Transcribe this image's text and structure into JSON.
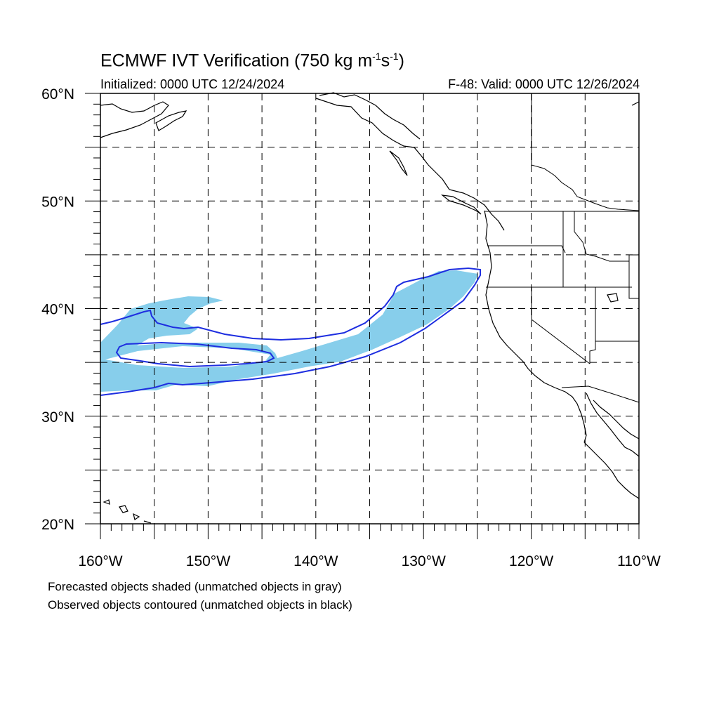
{
  "header": {
    "title_main": "ECMWF IVT Verification (750 kg m",
    "title_exp1": "-1",
    "title_mid": "s",
    "title_exp2": "-1",
    "title_end": ")",
    "initialized": "Initialized: 0000 UTC 12/24/2024",
    "valid": "F-48: Valid: 0000 UTC 12/26/2024"
  },
  "map": {
    "lon_range": [
      -160,
      -110
    ],
    "lat_range": [
      20,
      60
    ],
    "lat_ticks": [
      {
        "value": 60,
        "label": "60°N"
      },
      {
        "value": 50,
        "label": "50°N"
      },
      {
        "value": 40,
        "label": "40°N"
      },
      {
        "value": 30,
        "label": "30°N"
      },
      {
        "value": 20,
        "label": "20°N"
      }
    ],
    "lon_ticks": [
      {
        "value": -160,
        "label": "160°W"
      },
      {
        "value": -150,
        "label": "150°W"
      },
      {
        "value": -140,
        "label": "140°W"
      },
      {
        "value": -130,
        "label": "130°W"
      },
      {
        "value": -120,
        "label": "120°W"
      },
      {
        "value": -110,
        "label": "110°W"
      }
    ],
    "colors": {
      "forecast_shade": "#87ceeb",
      "observed_contour": "#1e2ee0",
      "coastline": "#000000",
      "grid": "#000000"
    }
  },
  "legend": {
    "line1": "Forecasted objects shaded (unmatched objects in gray)",
    "line2": "Observed objects contoured (unmatched objects in black)"
  }
}
